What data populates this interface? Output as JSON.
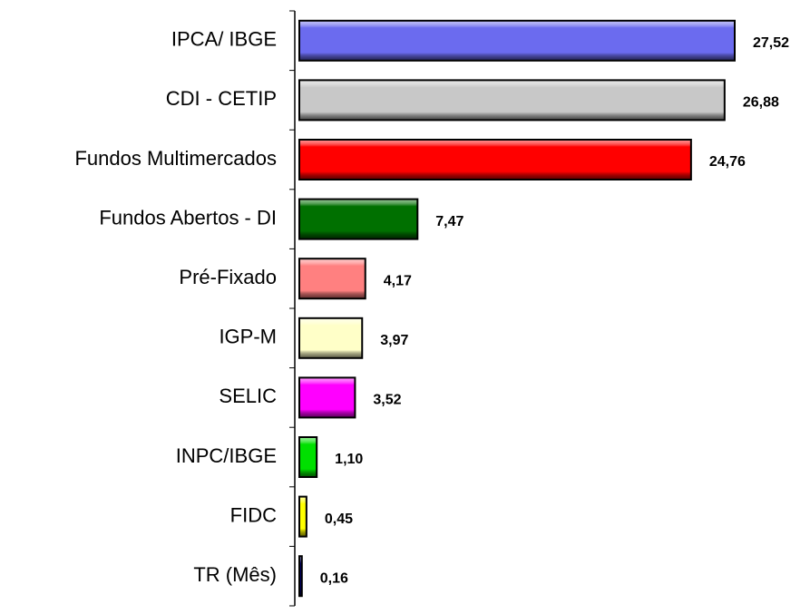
{
  "chart_data": {
    "type": "bar",
    "orientation": "horizontal",
    "categories": [
      "IPCA/ IBGE",
      "CDI - CETIP",
      "Fundos Multimercados",
      "Fundos Abertos - DI",
      "Pré-Fixado",
      "IGP-M",
      "SELIC",
      "INPC/IBGE",
      "FIDC",
      "TR (Mês)"
    ],
    "values": [
      27.52,
      26.88,
      24.76,
      7.47,
      4.17,
      3.97,
      3.52,
      1.1,
      0.45,
      0.16
    ],
    "value_labels": [
      "27,52",
      "26,88",
      "24,76",
      "7,47",
      "4,17",
      "3,97",
      "3,52",
      "1,10",
      "0,45",
      "0,16"
    ],
    "colors": [
      "#6b6bef",
      "#c8c8c8",
      "#ff0000",
      "#007000",
      "#ff8080",
      "#ffffc8",
      "#ff00ff",
      "#00e000",
      "#ffff00",
      "#000080"
    ]
  }
}
